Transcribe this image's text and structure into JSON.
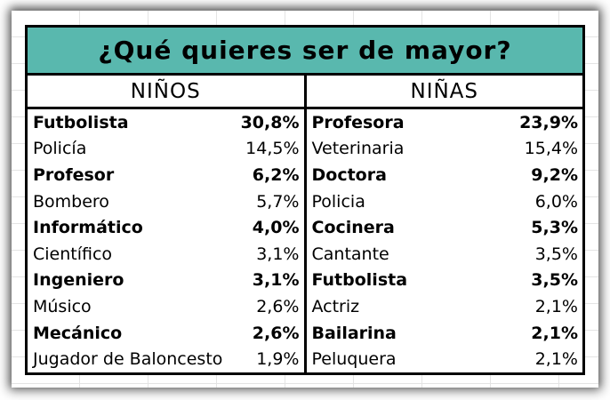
{
  "colors": {
    "title_bg": "#59b8ae",
    "border": "#000000",
    "text": "#000000"
  },
  "chart_data": {
    "type": "table",
    "title": "¿Qué quieres ser de mayor?",
    "groups": [
      {
        "header": "NIÑOS",
        "rows": [
          {
            "label": "Futbolista",
            "value": "30,8%",
            "pct": 30.8,
            "bold": true
          },
          {
            "label": "Policía",
            "value": "14,5%",
            "pct": 14.5,
            "bold": false
          },
          {
            "label": "Profesor",
            "value": "6,2%",
            "pct": 6.2,
            "bold": true
          },
          {
            "label": "Bombero",
            "value": "5,7%",
            "pct": 5.7,
            "bold": false
          },
          {
            "label": "Informático",
            "value": "4,0%",
            "pct": 4.0,
            "bold": true
          },
          {
            "label": "Científico",
            "value": "3,1%",
            "pct": 3.1,
            "bold": false
          },
          {
            "label": "Ingeniero",
            "value": "3,1%",
            "pct": 3.1,
            "bold": true
          },
          {
            "label": "Músico",
            "value": "2,6%",
            "pct": 2.6,
            "bold": false
          },
          {
            "label": "Mecánico",
            "value": "2,6%",
            "pct": 2.6,
            "bold": true
          },
          {
            "label": "Jugador de Baloncesto",
            "value": "1,9%",
            "pct": 1.9,
            "bold": false
          }
        ]
      },
      {
        "header": "NIÑAS",
        "rows": [
          {
            "label": "Profesora",
            "value": "23,9%",
            "pct": 23.9,
            "bold": true
          },
          {
            "label": "Veterinaria",
            "value": "15,4%",
            "pct": 15.4,
            "bold": false
          },
          {
            "label": "Doctora",
            "value": "9,2%",
            "pct": 9.2,
            "bold": true
          },
          {
            "label": "Policia",
            "value": "6,0%",
            "pct": 6.0,
            "bold": false
          },
          {
            "label": "Cocinera",
            "value": "5,3%",
            "pct": 5.3,
            "bold": true
          },
          {
            "label": "Cantante",
            "value": "3,5%",
            "pct": 3.5,
            "bold": false
          },
          {
            "label": "Futbolista",
            "value": "3,5%",
            "pct": 3.5,
            "bold": true
          },
          {
            "label": "Actriz",
            "value": "2,1%",
            "pct": 2.1,
            "bold": false
          },
          {
            "label": "Bailarina",
            "value": "2,1%",
            "pct": 2.1,
            "bold": true
          },
          {
            "label": "Peluquera",
            "value": "2,1%",
            "pct": 2.1,
            "bold": false
          }
        ]
      }
    ]
  }
}
